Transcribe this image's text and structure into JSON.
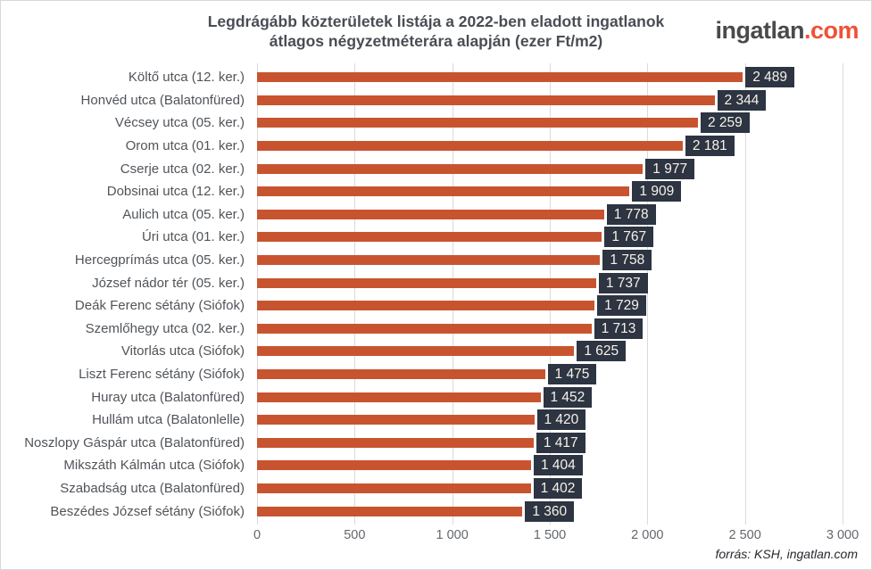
{
  "header": {
    "title_line1": "Legdrágább közterületek listája a 2022-ben eladott ingatlanok",
    "title_line2": "átlagos négyzetméterára alapján (ezer Ft/m2)",
    "logo_text": "ingatlan",
    "logo_suffix": ".com"
  },
  "chart_data": {
    "type": "bar",
    "orientation": "horizontal",
    "title": "Legdrágább közterületek listája a 2022-ben eladott ingatlanok átlagos négyzetméterára alapján (ezer Ft/m2)",
    "categories": [
      "Költő utca (12. ker.)",
      "Honvéd utca (Balatonfüred)",
      "Vécsey utca (05. ker.)",
      "Orom utca (01. ker.)",
      "Cserje utca (02. ker.)",
      "Dobsinai utca (12. ker.)",
      "Aulich utca (05. ker.)",
      "Úri utca (01. ker.)",
      "Hercegprímás utca (05. ker.)",
      "József nádor tér (05. ker.)",
      "Deák Ferenc sétány (Siófok)",
      "Szemlőhegy utca (02. ker.)",
      "Vitorlás utca (Siófok)",
      "Liszt Ferenc sétány (Siófok)",
      "Huray utca (Balatonfüred)",
      "Hullám utca (Balatonlelle)",
      "Noszlopy Gáspár utca (Balatonfüred)",
      "Mikszáth Kálmán utca (Siófok)",
      "Szabadság utca (Balatonfüred)",
      "Beszédes József sétány (Siófok)"
    ],
    "values": [
      2489,
      2344,
      2259,
      2181,
      1977,
      1909,
      1778,
      1767,
      1758,
      1737,
      1729,
      1713,
      1625,
      1475,
      1452,
      1420,
      1417,
      1404,
      1402,
      1360
    ],
    "value_labels": [
      "2 489",
      "2 344",
      "2 259",
      "2 181",
      "1 977",
      "1 909",
      "1 778",
      "1 767",
      "1 758",
      "1 737",
      "1 729",
      "1 713",
      "1 625",
      "1 475",
      "1 452",
      "1 420",
      "1 417",
      "1 404",
      "1 402",
      "1 360"
    ],
    "xlim": [
      0,
      3000
    ],
    "x_ticks": [
      0,
      500,
      1000,
      1500,
      2000,
      2500,
      3000
    ],
    "x_tick_labels": [
      "0",
      "500",
      "1 000",
      "1 500",
      "2 000",
      "2 500",
      "3 000"
    ],
    "grid": true,
    "legend": false,
    "bar_color": "#C8542F",
    "value_label_bg": "#2D3442",
    "value_label_text": "#F7F2E8"
  },
  "footer": {
    "source": "forrás: KSH, ingatlan.com"
  }
}
